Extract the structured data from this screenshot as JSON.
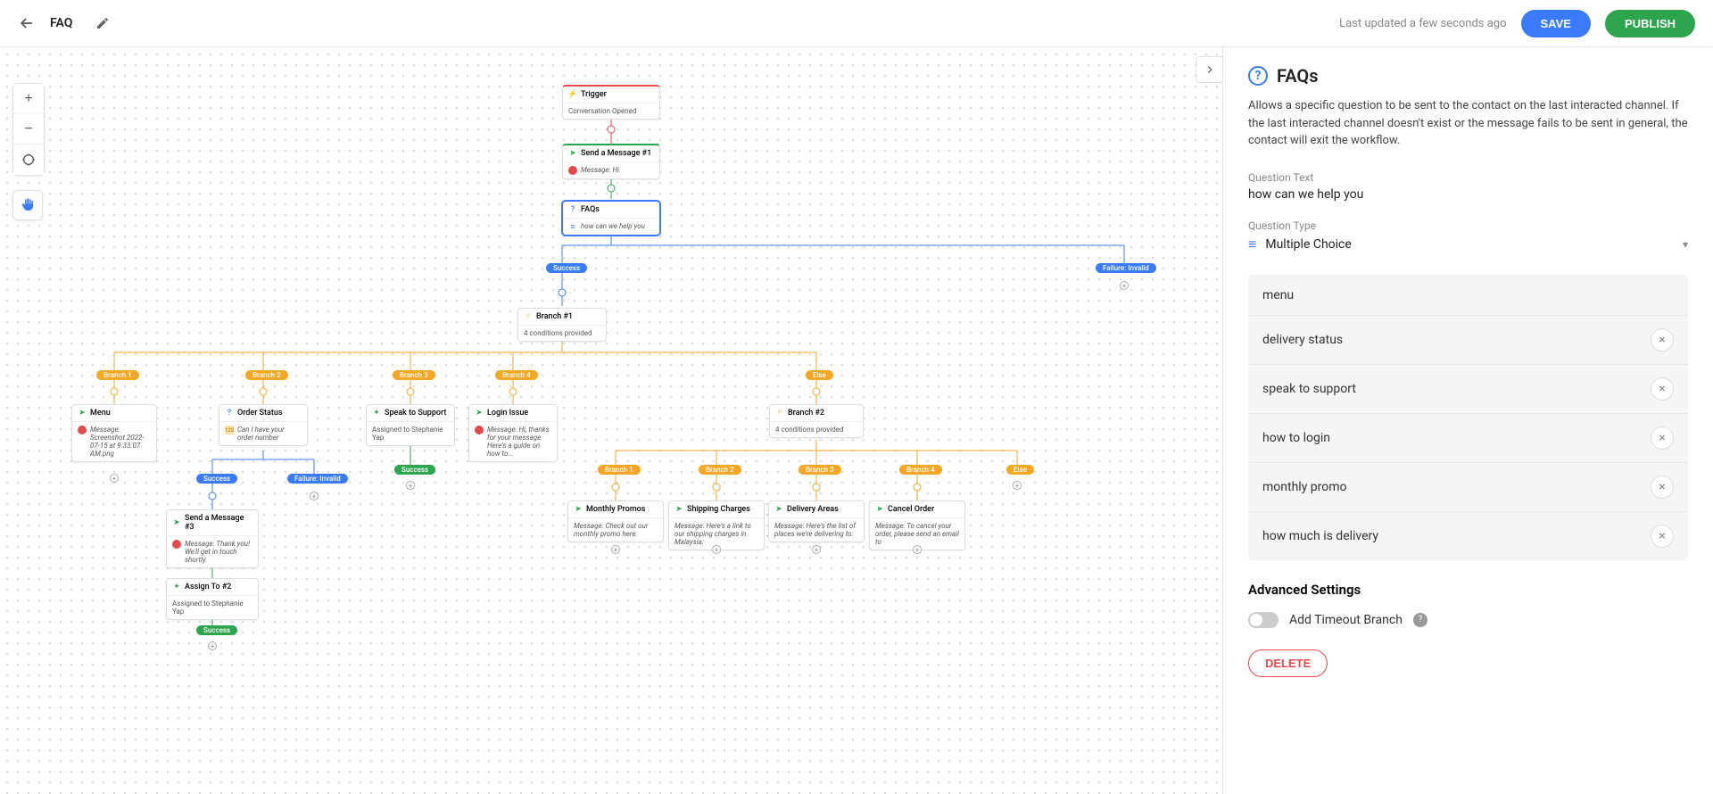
{
  "header": {
    "title": "FAQ",
    "last_updated": "Last updated a few seconds ago",
    "save_label": "SAVE",
    "publish_label": "PUBLISH"
  },
  "sidebar": {
    "title": "FAQs",
    "description": "Allows a specific question to be sent to the contact on the last interacted channel. If the last interacted channel doesn't exist or the message fails to be sent in general, the contact will exit the workflow.",
    "question_text_label": "Question Text",
    "question_text_value": "how can we help you",
    "question_type_label": "Question Type",
    "question_type_value": "Multiple Choice",
    "options": [
      {
        "label": "menu",
        "removable": false
      },
      {
        "label": "delivery status",
        "removable": true
      },
      {
        "label": "speak to support",
        "removable": true
      },
      {
        "label": "how to login",
        "removable": true
      },
      {
        "label": "monthly promo",
        "removable": true
      },
      {
        "label": "how much is delivery",
        "removable": true
      }
    ],
    "advanced_label": "Advanced Settings",
    "timeout_label": "Add Timeout Branch",
    "delete_label": "DELETE"
  },
  "flow": {
    "nodes": {
      "trigger": {
        "title": "Trigger",
        "body": "Conversation Opened"
      },
      "msg1": {
        "title": "Send a Message #1",
        "body": "Message: Hi"
      },
      "faqs": {
        "title": "FAQs",
        "body": "how can we help you"
      },
      "branch1": {
        "title": "Branch #1",
        "body": "4 conditions provided"
      },
      "menu": {
        "title": "Menu",
        "body": "Message: Screenshot 2022-07-15 at 9.33.07 AM.png"
      },
      "order_status": {
        "title": "Order Status",
        "body": "Can I have your order number"
      },
      "speak_support": {
        "title": "Speak to Support",
        "body": "Assigned to Stephanie Yap"
      },
      "login_issue": {
        "title": "Login Issue",
        "body": "Message: Hi, thanks for your message. Here's a guide on how to..."
      },
      "branch2": {
        "title": "Branch #2",
        "body": "4 conditions provided"
      },
      "msg3": {
        "title": "Send a Message #3",
        "body": "Message: Thank you! We'll get in touch shortly."
      },
      "assign2": {
        "title": "Assign To #2",
        "body": "Assigned to Stephanie Yap"
      },
      "monthly_promos": {
        "title": "Monthly Promos",
        "body": "Message: Check out our monthly promo here:"
      },
      "shipping": {
        "title": "Shipping Charges",
        "body": "Message: Here's a link to our shipping charges in Malaysia:"
      },
      "delivery_areas": {
        "title": "Delivery Areas",
        "body": "Message: Here's the list of places we're delivering to:"
      },
      "cancel_order": {
        "title": "Cancel Order",
        "body": "Message: To cancel your order, please send an email to"
      }
    },
    "pills": {
      "success1": "Success",
      "failure1": "Failure: Invalid",
      "b1": "Branch 1",
      "b2": "Branch 2",
      "b3": "Branch 3",
      "b4": "Branch 4",
      "else": "Else",
      "success2": "Success",
      "failure2": "Failure: Invalid",
      "bb1": "Branch 1",
      "bb2": "Branch 2",
      "bb3": "Branch 3",
      "bb4": "Branch 4",
      "belse": "Else",
      "success3": "Success",
      "success4": "Success"
    },
    "colors": {
      "edge_blue": "#3a7bfd",
      "edge_orange": "#f5a623",
      "edge_green": "#2da44e",
      "edge_red": "#e5484d"
    }
  }
}
